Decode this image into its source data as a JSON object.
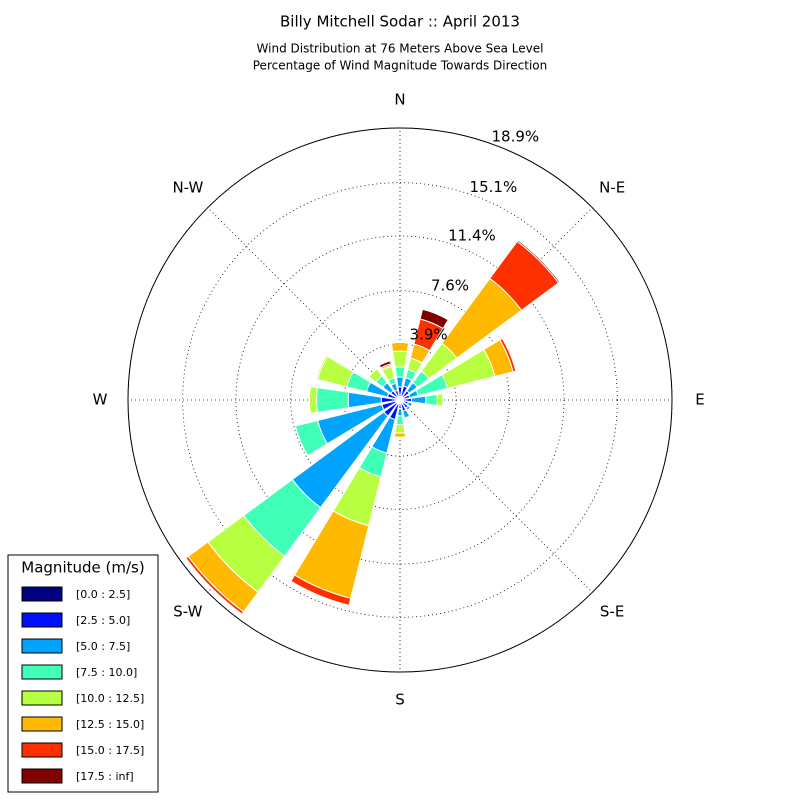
{
  "chart_data": {
    "type": "windrose",
    "title": "Billy Mitchell Sodar :: April 2013",
    "subtitle": [
      "Wind Distribution at 76 Meters Above Sea Level",
      "Percentage of Wind Magnitude Towards Direction"
    ],
    "categories": [
      "N",
      null,
      "N-E",
      null,
      "E",
      null,
      "S-E",
      null,
      "S",
      null,
      "S-W",
      null,
      "W",
      null,
      "N-W",
      null
    ],
    "rlim": [
      0,
      18.9
    ],
    "rticks": [
      {
        "value": 3.9,
        "label": "3.9%"
      },
      {
        "value": 7.6,
        "label": "7.6%"
      },
      {
        "value": 11.4,
        "label": "11.4%"
      },
      {
        "value": 15.1,
        "label": "15.1%"
      },
      {
        "value": 18.9,
        "label": "18.9%"
      }
    ],
    "grid": true,
    "legend_title": "Magnitude (m/s)",
    "legend_position": "lower left",
    "series": [
      {
        "name": "[0.0 : 2.5]",
        "color": "#000080",
        "values": [
          0.2,
          0.2,
          0.2,
          0.2,
          0.2,
          0.2,
          0.2,
          0.2,
          0.2,
          0.3,
          0.3,
          0.3,
          0.3,
          0.2,
          0.2,
          0.2
        ]
      },
      {
        "name": "[2.5 : 5.0]",
        "color": "#0010ff",
        "values": [
          0.7,
          0.8,
          0.6,
          0.5,
          0.6,
          0.4,
          0.5,
          0.6,
          0.4,
          1.1,
          1.1,
          1.0,
          1.0,
          0.7,
          0.6,
          0.5
        ]
      },
      {
        "name": "[5.0 : 7.5]",
        "color": "#00a4ff",
        "values": [
          0.7,
          0.6,
          0.7,
          0.6,
          1.0,
          0.3,
          0.2,
          0.5,
          0.5,
          2.4,
          7.9,
          4.6,
          2.3,
          1.5,
          0.7,
          0.5
        ]
      },
      {
        "name": "[7.5 : 10.0]",
        "color": "#40ffb7",
        "values": [
          0.7,
          0.6,
          1.0,
          2.1,
          0.8,
          0,
          0,
          0,
          0.6,
          1.7,
          4.2,
          1.6,
          2.2,
          1.4,
          0.6,
          0.4
        ]
      },
      {
        "name": "[10.0 : 12.5]",
        "color": "#b7ff40",
        "values": [
          1.1,
          0.8,
          2.4,
          3.4,
          0.4,
          0,
          0,
          0,
          0.6,
          3.5,
          3.1,
          0,
          0.5,
          2.1,
          0.6,
          0.8
        ]
      },
      {
        "name": "[12.5 : 15.0]",
        "color": "#ffb900",
        "values": [
          0.6,
          1.0,
          5.6,
          1.3,
          0,
          0,
          0,
          0,
          0.3,
          5.2,
          1.7,
          0,
          0,
          0.1,
          0,
          0.1
        ]
      },
      {
        "name": "[15.0 : 17.5]",
        "color": "#ff3000",
        "values": [
          0,
          1.8,
          3.2,
          0.2,
          0,
          0,
          0,
          0,
          0,
          0.5,
          0.2,
          0,
          0,
          0,
          0,
          0.1
        ]
      },
      {
        "name": "[17.5 : inf]",
        "color": "#800000",
        "values": [
          0,
          0.7,
          0.1,
          0,
          0,
          0,
          0,
          0,
          0,
          0,
          0,
          0,
          0,
          0,
          0,
          0.2
        ]
      }
    ]
  }
}
